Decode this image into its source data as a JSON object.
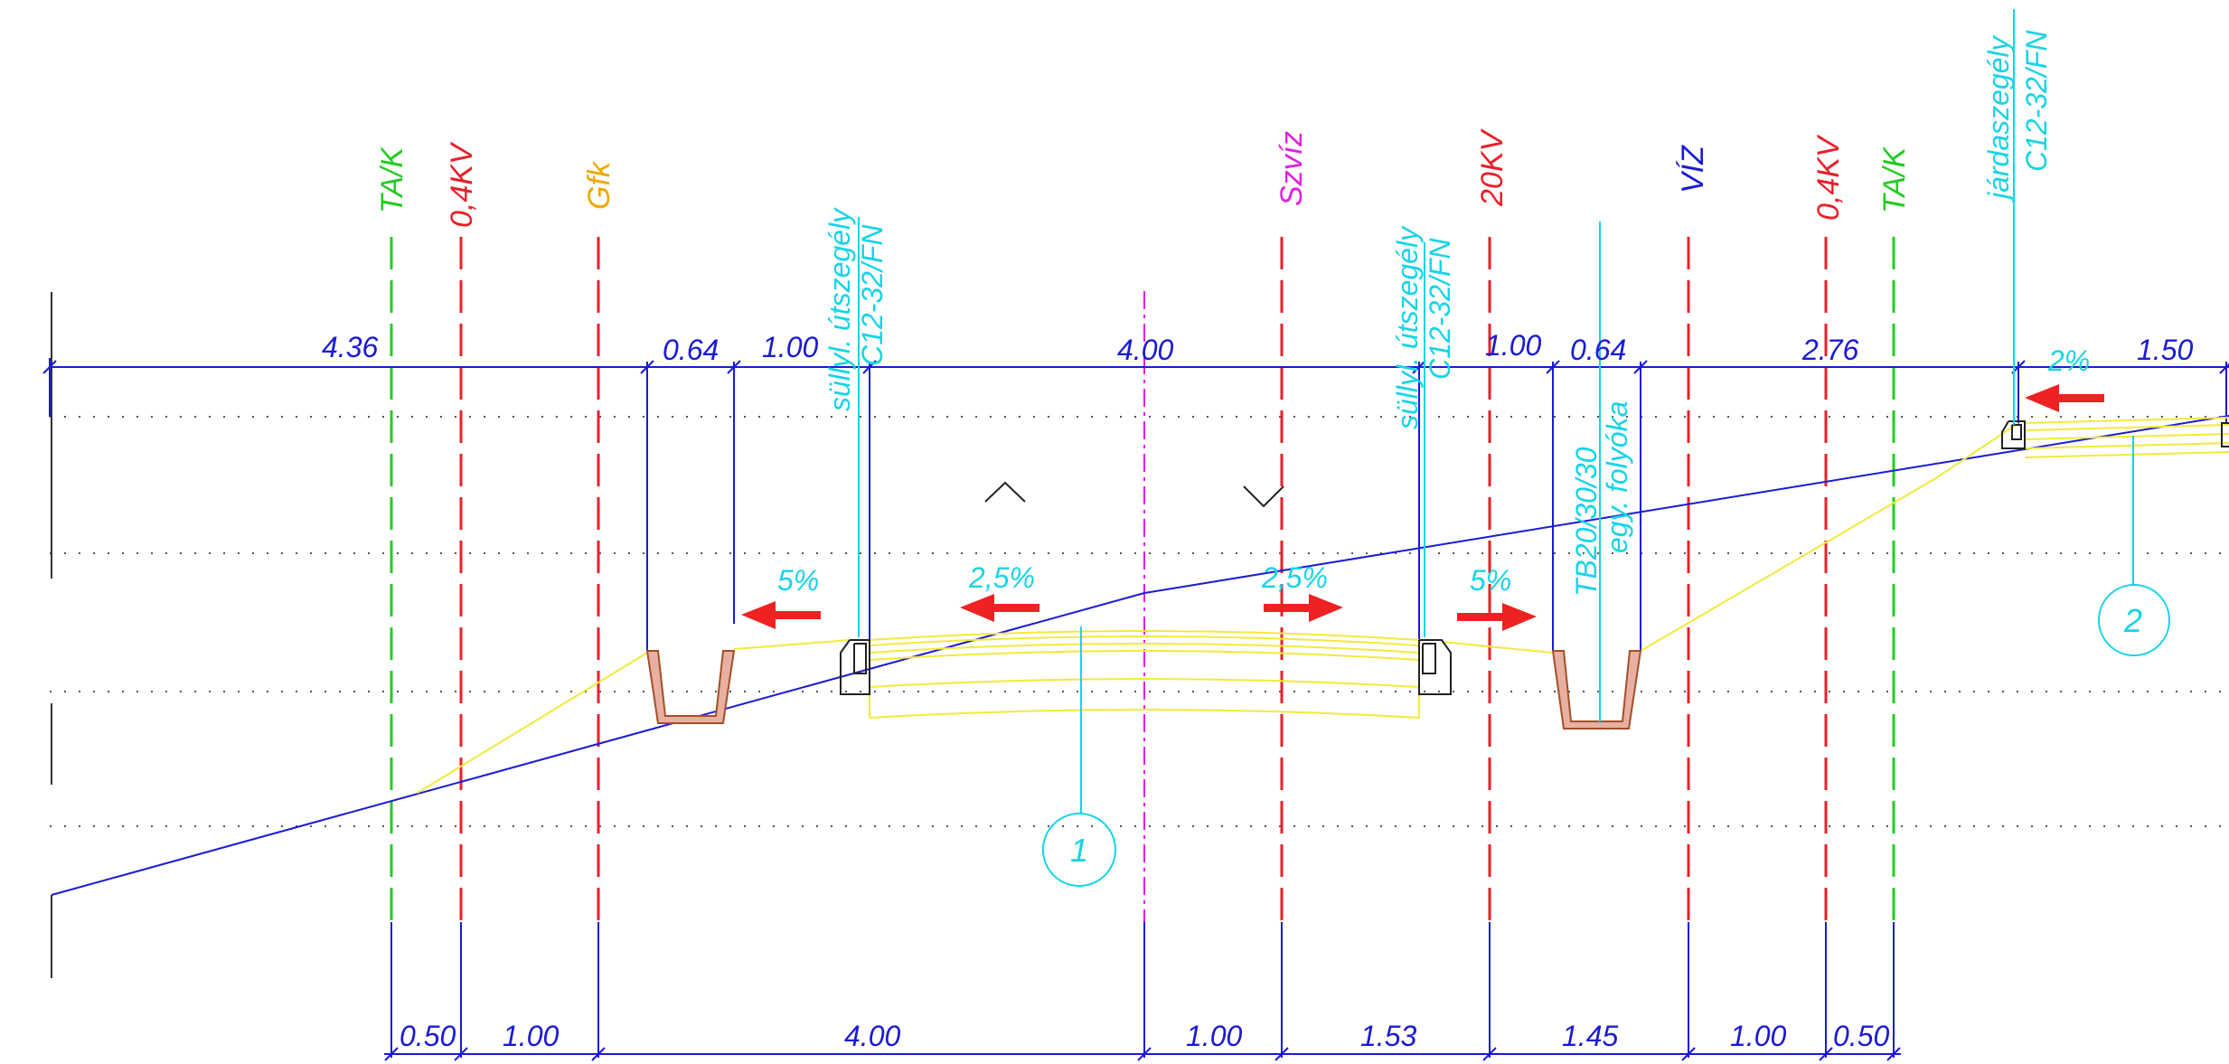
{
  "colors": {
    "dimension": "#1a1ad6",
    "cyan": "#17d4e6",
    "red": "#e8202a",
    "green": "#22cc22",
    "orange": "#f0a800",
    "magenta": "#e020e0",
    "yellow": "#f2ea3a",
    "brown": "#a0502a",
    "arrow": "#ee2222"
  },
  "utilities": [
    {
      "label": "TA/K",
      "color": "#22cc22"
    },
    {
      "label": "0,4KV",
      "color": "#e8202a"
    },
    {
      "label": "Gfk",
      "color": "#f0a800"
    },
    {
      "label": "Szvíz",
      "color": "#e020e0"
    },
    {
      "label": "20KV",
      "color": "#e8202a"
    },
    {
      "label": "VÍZ",
      "color": "#1a1ad6"
    },
    {
      "label": "0,4KV",
      "color": "#e8202a"
    },
    {
      "label": "TA/K",
      "color": "#22cc22"
    }
  ],
  "top_dimensions": [
    "4.36",
    "0.64",
    "1.00",
    "4.00",
    "1.00",
    "0.64",
    "2.76",
    "1.50"
  ],
  "bottom_dimensions": [
    "0.50",
    "1.00",
    "4.00",
    "1.00",
    "1.53",
    "1.45",
    "1.00",
    "0.50"
  ],
  "slopes": [
    "5%",
    "2,5%",
    "2,5%",
    "5%",
    "2%"
  ],
  "curb_labels": {
    "left": {
      "line1": "süllyl. útszegély",
      "line2": "C12-32/FN"
    },
    "right": {
      "line1": "süllyl. útszegély",
      "line2": "C12-32/FN"
    },
    "sidewalk": {
      "line1": "járdaszegély",
      "line2": "C12-32/FN"
    }
  },
  "gutter_label": {
    "line1": "TB20/30/30",
    "line2": "egy. folyóka"
  },
  "detail_markers": [
    "1",
    "2"
  ]
}
